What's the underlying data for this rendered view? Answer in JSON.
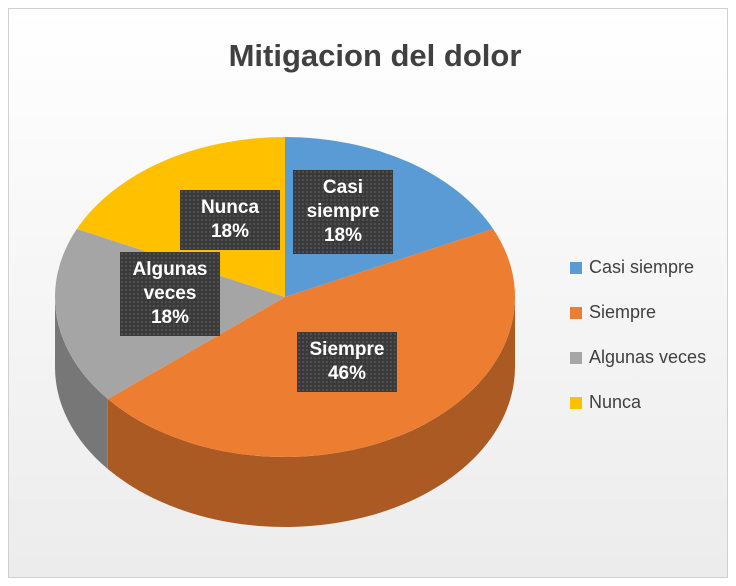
{
  "chart_data": {
    "type": "pie",
    "title": "Mitigacion del dolor",
    "categories": [
      "Casi siempre",
      "Siempre",
      "Algunas veces",
      "Nunca"
    ],
    "values": [
      18,
      46,
      18,
      18
    ],
    "value_labels": [
      "18%",
      "46%",
      "18%",
      "18%"
    ],
    "colors": [
      "#5b9bd5",
      "#ed7d31",
      "#a5a5a5",
      "#ffc000"
    ],
    "legend": "right"
  }
}
